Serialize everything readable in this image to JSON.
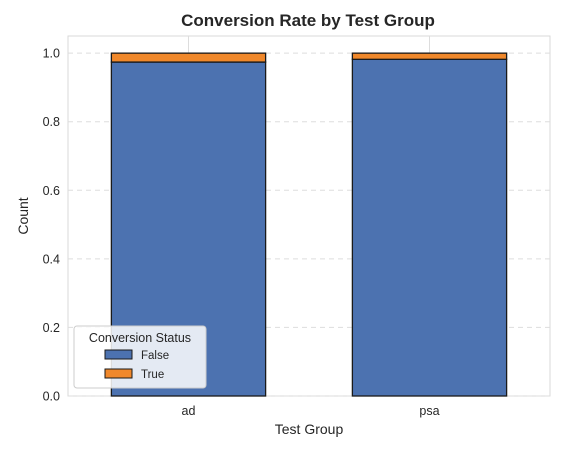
{
  "chart_data": {
    "type": "bar",
    "stacked": true,
    "title": "Conversion Rate by Test Group",
    "xlabel": "Test Group",
    "ylabel": "Count",
    "categories": [
      "ad",
      "psa"
    ],
    "series": [
      {
        "name": "False",
        "values": [
          0.974,
          0.982
        ],
        "color": "#4c72b0"
      },
      {
        "name": "True",
        "values": [
          0.026,
          0.018
        ],
        "color": "#f0882b"
      }
    ],
    "ylim": [
      0,
      1.05
    ],
    "yticks": [
      0.0,
      0.2,
      0.4,
      0.6,
      0.8,
      1.0
    ],
    "ytick_labels": [
      "0.0",
      "0.2",
      "0.4",
      "0.6",
      "0.8",
      "1.0"
    ],
    "grid": true,
    "legend": {
      "title": "Conversion Status",
      "position": "lower-left"
    }
  }
}
